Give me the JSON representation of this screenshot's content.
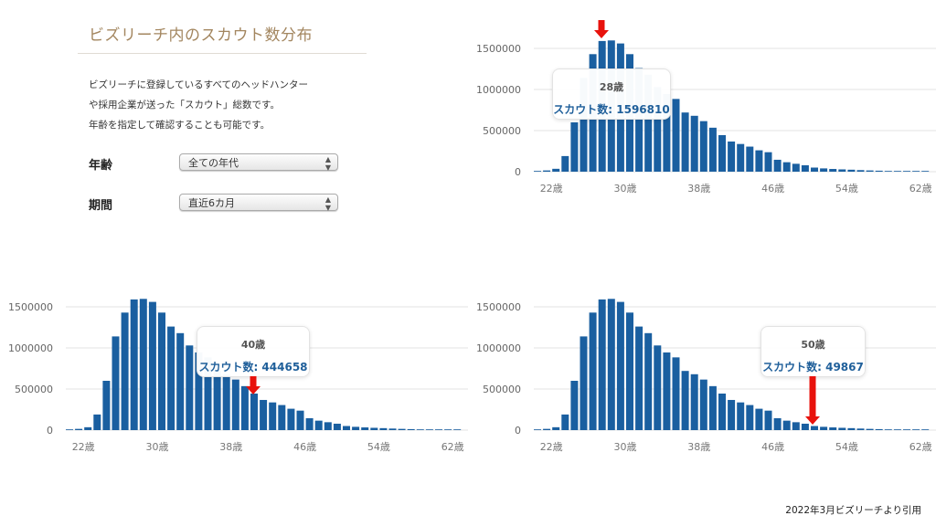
{
  "panel": {
    "title": "ビズリーチ内のスカウト数分布",
    "description": [
      "ビズリーチに登録しているすべてのヘッドハンター",
      "や採用企業が送った「スカウト」総数です。",
      "年齢を指定して確認することも可能です。"
    ],
    "age_label": "年齢",
    "age_select": "全ての年代",
    "period_label": "期間",
    "period_select": "直近6カ月",
    "select_icon": "updown-arrows-icon"
  },
  "colors": {
    "bar": "#1a5fa0",
    "arrow": "#e8120c",
    "title": "#a3865f",
    "tooltip_value": "#1f5f9a"
  },
  "source_note": "2022年3月ビズリーチより引用",
  "chart_data": [
    {
      "type": "bar",
      "categories": [
        "20歳",
        "21歳",
        "22歳",
        "23歳",
        "24歳",
        "25歳",
        "26歳",
        "27歳",
        "28歳",
        "29歳",
        "30歳",
        "31歳",
        "32歳",
        "33歳",
        "34歳",
        "35歳",
        "36歳",
        "37歳",
        "38歳",
        "39歳",
        "40歳",
        "41歳",
        "42歳",
        "43歳",
        "44歳",
        "45歳",
        "46歳",
        "47歳",
        "48歳",
        "49歳",
        "50歳",
        "51歳",
        "52歳",
        "53歳",
        "54歳",
        "55歳",
        "56歳",
        "57歳",
        "58歳",
        "59歳",
        "60歳",
        "61歳",
        "62歳"
      ],
      "values": [
        5000,
        15000,
        35000,
        190000,
        600000,
        1140000,
        1430000,
        1590000,
        1596810,
        1560000,
        1430000,
        1260000,
        1180000,
        1030000,
        945000,
        885000,
        720000,
        680000,
        615000,
        535000,
        444658,
        367000,
        337000,
        305000,
        260000,
        237000,
        145000,
        115000,
        96000,
        78000,
        49867,
        40000,
        33000,
        28000,
        24000,
        19000,
        15000,
        12000,
        9000,
        7000,
        5000,
        3000,
        2000
      ],
      "x_tick_labels": [
        "22歳",
        "30歳",
        "38歳",
        "46歳",
        "54歳",
        "62歳"
      ],
      "y_tick_labels": [
        "0",
        "500000",
        "1000000",
        "1500000"
      ],
      "ylim": [
        0,
        1650000
      ],
      "grid": true,
      "tooltip": {
        "age": "28歳",
        "label": "スカウト数: 1596810"
      },
      "highlight": "28歳"
    },
    {
      "type": "bar",
      "categories": [
        "20歳",
        "21歳",
        "22歳",
        "23歳",
        "24歳",
        "25歳",
        "26歳",
        "27歳",
        "28歳",
        "29歳",
        "30歳",
        "31歳",
        "32歳",
        "33歳",
        "34歳",
        "35歳",
        "36歳",
        "37歳",
        "38歳",
        "39歳",
        "40歳",
        "41歳",
        "42歳",
        "43歳",
        "44歳",
        "45歳",
        "46歳",
        "47歳",
        "48歳",
        "49歳",
        "50歳",
        "51歳",
        "52歳",
        "53歳",
        "54歳",
        "55歳",
        "56歳",
        "57歳",
        "58歳",
        "59歳",
        "60歳",
        "61歳",
        "62歳"
      ],
      "values": [
        5000,
        15000,
        35000,
        190000,
        600000,
        1140000,
        1430000,
        1590000,
        1596810,
        1560000,
        1430000,
        1260000,
        1180000,
        1030000,
        945000,
        885000,
        720000,
        680000,
        615000,
        535000,
        444658,
        367000,
        337000,
        305000,
        260000,
        237000,
        145000,
        115000,
        96000,
        78000,
        49867,
        40000,
        33000,
        28000,
        24000,
        19000,
        15000,
        12000,
        9000,
        7000,
        5000,
        3000,
        2000
      ],
      "x_tick_labels": [
        "22歳",
        "30歳",
        "38歳",
        "46歳",
        "54歳",
        "62歳"
      ],
      "y_tick_labels": [
        "0",
        "500000",
        "1000000",
        "1500000"
      ],
      "ylim": [
        0,
        1650000
      ],
      "grid": true,
      "tooltip": {
        "age": "40歳",
        "label": "スカウト数: 444658"
      },
      "highlight": "40歳"
    },
    {
      "type": "bar",
      "categories": [
        "20歳",
        "21歳",
        "22歳",
        "23歳",
        "24歳",
        "25歳",
        "26歳",
        "27歳",
        "28歳",
        "29歳",
        "30歳",
        "31歳",
        "32歳",
        "33歳",
        "34歳",
        "35歳",
        "36歳",
        "37歳",
        "38歳",
        "39歳",
        "40歳",
        "41歳",
        "42歳",
        "43歳",
        "44歳",
        "45歳",
        "46歳",
        "47歳",
        "48歳",
        "49歳",
        "50歳",
        "51歳",
        "52歳",
        "53歳",
        "54歳",
        "55歳",
        "56歳",
        "57歳",
        "58歳",
        "59歳",
        "60歳",
        "61歳",
        "62歳"
      ],
      "values": [
        5000,
        15000,
        35000,
        190000,
        600000,
        1140000,
        1430000,
        1590000,
        1596810,
        1560000,
        1430000,
        1260000,
        1180000,
        1030000,
        945000,
        885000,
        720000,
        680000,
        615000,
        535000,
        444658,
        367000,
        337000,
        305000,
        260000,
        237000,
        145000,
        115000,
        96000,
        78000,
        49867,
        40000,
        33000,
        28000,
        24000,
        19000,
        15000,
        12000,
        9000,
        7000,
        5000,
        3000,
        2000
      ],
      "x_tick_labels": [
        "22歳",
        "30歳",
        "38歳",
        "46歳",
        "54歳",
        "62歳"
      ],
      "y_tick_labels": [
        "0",
        "500000",
        "1000000",
        "1500000"
      ],
      "ylim": [
        0,
        1650000
      ],
      "grid": true,
      "tooltip": {
        "age": "50歳",
        "label": "スカウト数: 49867"
      },
      "highlight": "50歳"
    }
  ]
}
